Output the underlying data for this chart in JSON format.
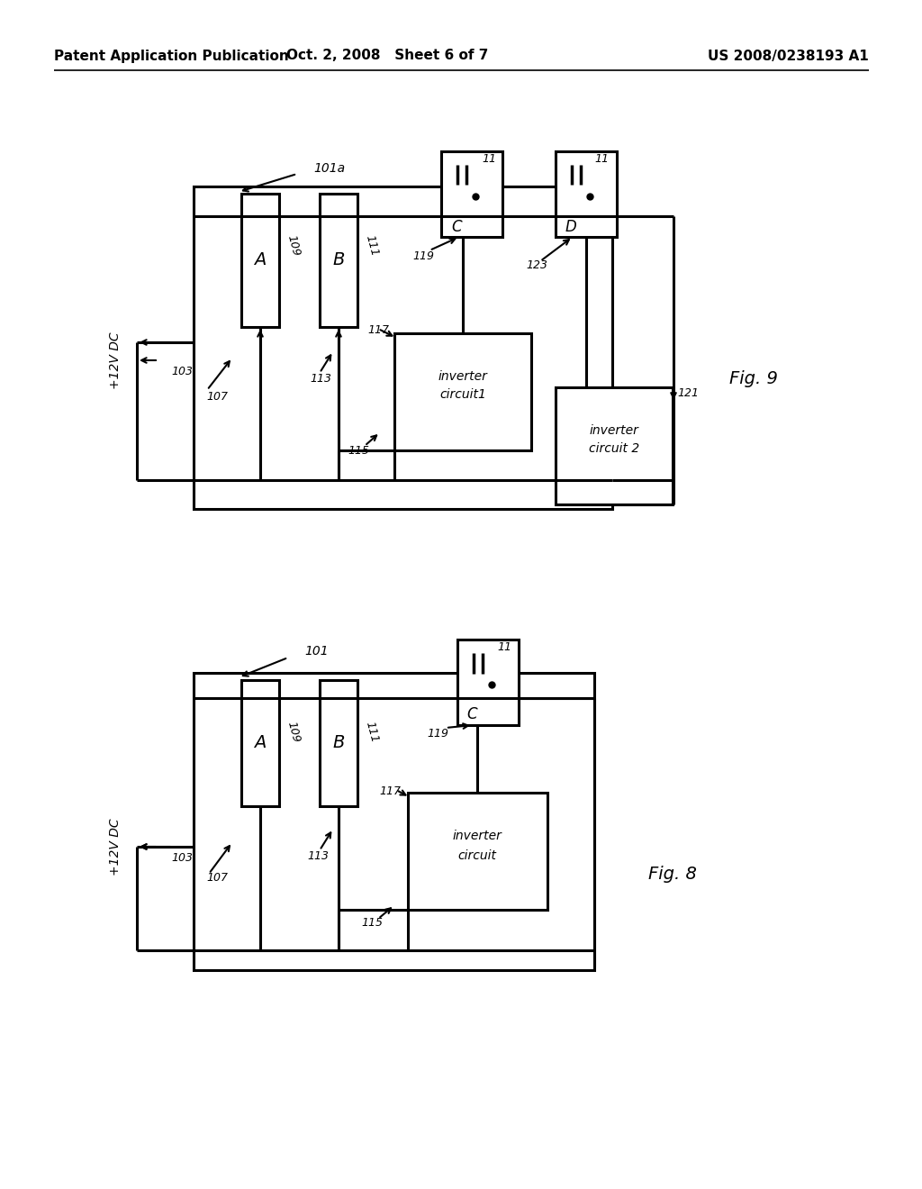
{
  "header_left": "Patent Application Publication",
  "header_center": "Oct. 2, 2008   Sheet 6 of 7",
  "header_right": "US 2008/0238193 A1",
  "bg_color": "#ffffff",
  "line_color": "#1a1a1a",
  "fig9_label": "Fig. 9",
  "fig8_label": "Fig. 8",
  "gray_bg": "#d8d8d8"
}
